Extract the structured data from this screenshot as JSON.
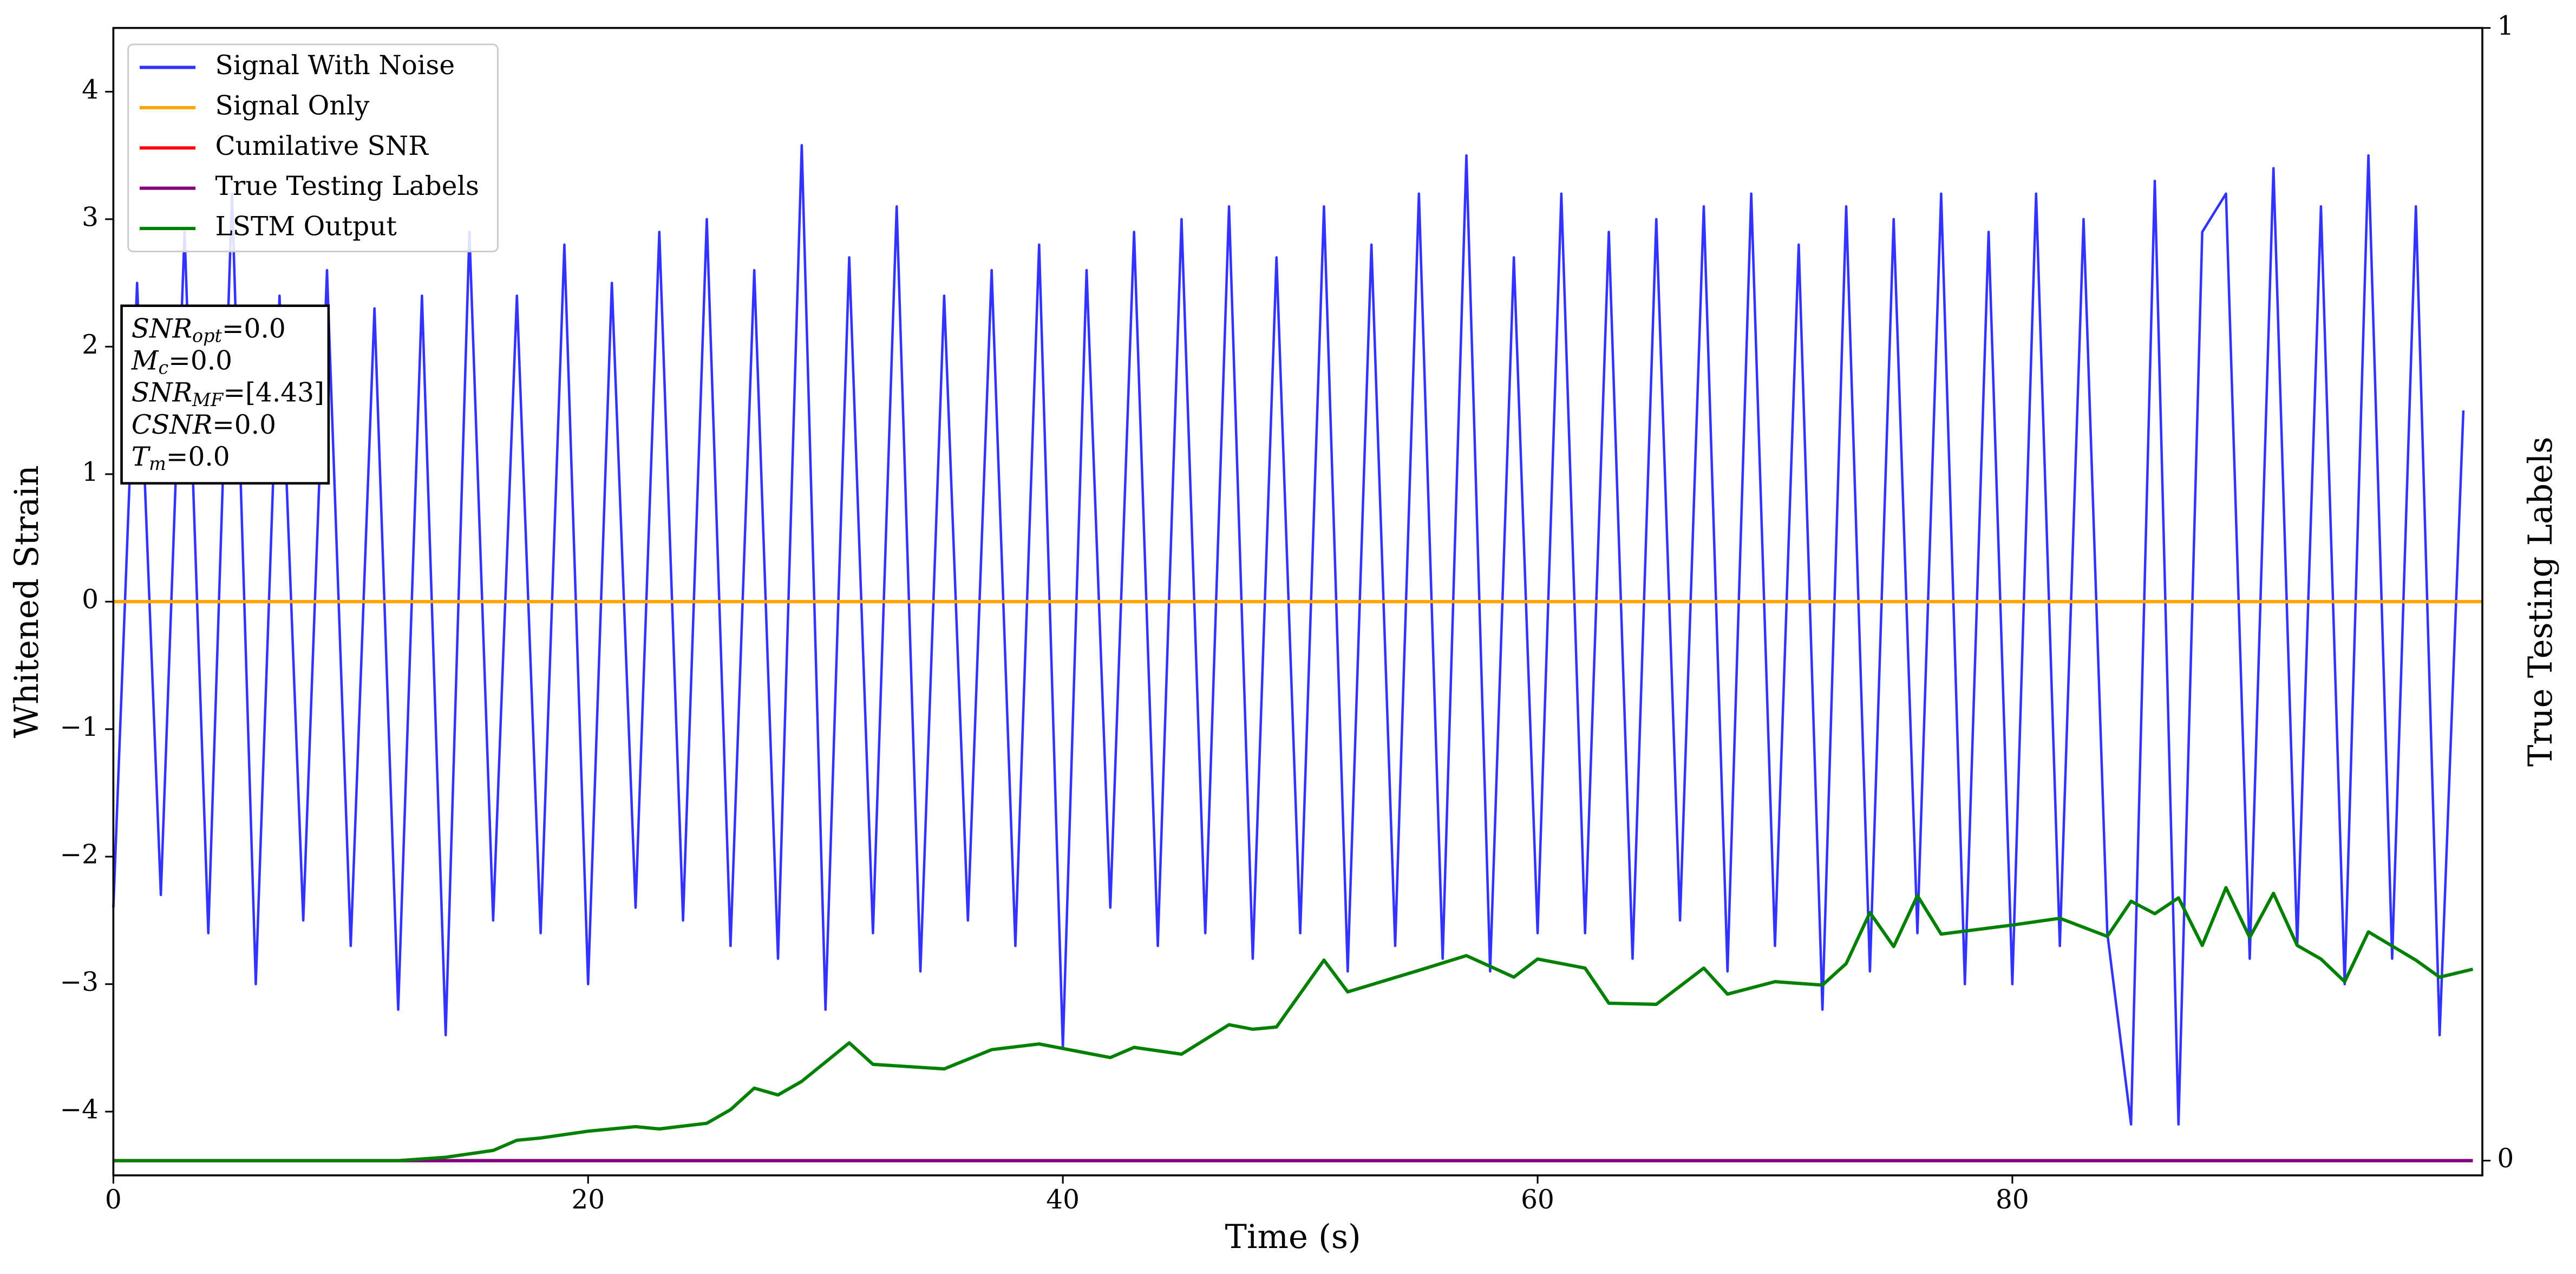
{
  "chart_data": {
    "type": "line",
    "xlabel": "Time (s)",
    "ylabel": "Whitened Strain",
    "y2label": "True Testing Labels",
    "xlim": [
      0,
      99.8
    ],
    "xticks": [
      0,
      20,
      40,
      60,
      80
    ],
    "ylim": [
      -4.5,
      4.5
    ],
    "yticks": [
      {
        "value": -4,
        "label": "−4"
      },
      {
        "value": -3,
        "label": "−3"
      },
      {
        "value": -2,
        "label": "−2"
      },
      {
        "value": -1,
        "label": "−1"
      },
      0,
      1,
      2,
      3,
      4
    ],
    "y2lim": [
      -0.013,
      1
    ],
    "y2ticks": [
      0,
      1
    ],
    "legend": "upper left",
    "series": [
      {
        "name": "Signal With Noise",
        "color": "#3333ff",
        "x": [
          0,
          1,
          2,
          3,
          4,
          5,
          6,
          7,
          8,
          9,
          10,
          11,
          12,
          13,
          14,
          15,
          16,
          17,
          18,
          19,
          20,
          21,
          22,
          23,
          24,
          25,
          26,
          27,
          28,
          29,
          30,
          31,
          32,
          33,
          34,
          35,
          36,
          37,
          38,
          39,
          40,
          41,
          42,
          43,
          44,
          45,
          46,
          47,
          48,
          49,
          50,
          51,
          52,
          53,
          54,
          55,
          56,
          57,
          58,
          59,
          60,
          61,
          62,
          63,
          64,
          65,
          66,
          67,
          68,
          69,
          70,
          71,
          72,
          73,
          74,
          75,
          76,
          77,
          78,
          79,
          80,
          81,
          82,
          83,
          84,
          85,
          86,
          87,
          88,
          89,
          90,
          91,
          92,
          93,
          94,
          95,
          96,
          97,
          98,
          99
        ],
        "values": [
          -2.4,
          2.5,
          -2.3,
          2.9,
          -2.6,
          3.2,
          -3.0,
          2.4,
          -2.5,
          2.6,
          -2.7,
          2.3,
          -3.2,
          2.4,
          -3.4,
          2.9,
          -2.5,
          2.4,
          -2.6,
          2.8,
          -3.0,
          2.5,
          -2.4,
          2.9,
          -2.5,
          3.0,
          -2.7,
          2.6,
          -2.8,
          3.58,
          -3.2,
          2.7,
          -2.6,
          3.1,
          -2.9,
          2.4,
          -2.5,
          2.6,
          -2.7,
          2.8,
          -3.5,
          2.6,
          -2.4,
          2.9,
          -2.7,
          3.0,
          -2.6,
          3.1,
          -2.8,
          2.7,
          -2.6,
          3.1,
          -2.9,
          2.8,
          -2.7,
          3.2,
          -2.8,
          3.5,
          -2.9,
          2.7,
          -2.6,
          3.2,
          -2.6,
          2.9,
          -2.8,
          3.0,
          -2.5,
          3.1,
          -2.9,
          3.2,
          -2.7,
          2.8,
          -3.2,
          3.1,
          -2.9,
          3.0,
          -2.6,
          3.2,
          -3.0,
          2.9,
          -3.0,
          3.2,
          -2.7,
          3.0,
          -2.6,
          -4.1,
          3.3,
          -4.1,
          2.9,
          3.2,
          -2.8,
          3.4,
          -2.7,
          3.1,
          -3.0,
          3.5,
          -2.8,
          3.1,
          -3.4,
          1.5
        ]
      },
      {
        "name": "Signal Only",
        "color": "#ffa500",
        "x": [
          0,
          99.8
        ],
        "values": [
          0,
          0
        ]
      },
      {
        "name": "Cumilative SNR",
        "color": "#ff0000",
        "axis": "y2",
        "x": [
          0,
          99.4
        ],
        "values": [
          0,
          0
        ]
      },
      {
        "name": "True Testing Labels",
        "color": "#800080",
        "axis": "y2",
        "x": [
          0,
          99.4
        ],
        "values": [
          0,
          0
        ]
      },
      {
        "name": "LSTM Output",
        "color": "#008000",
        "axis": "y2",
        "x": [
          0,
          12,
          14,
          16,
          17,
          18,
          20,
          22,
          23,
          25,
          26,
          27,
          28,
          29,
          31,
          32,
          35,
          37,
          39,
          42,
          43,
          45,
          47,
          48,
          49,
          51,
          52,
          55,
          57,
          59,
          60,
          62,
          63,
          65,
          67,
          68,
          70,
          72,
          73,
          74,
          75,
          76,
          77,
          80,
          82,
          84,
          85,
          86,
          87,
          88,
          89,
          90,
          91,
          92,
          93,
          94,
          95,
          97,
          98,
          99.4
        ],
        "values": [
          0,
          0,
          0.003,
          0.009,
          0.018,
          0.02,
          0.026,
          0.03,
          0.028,
          0.033,
          0.045,
          0.064,
          0.058,
          0.07,
          0.104,
          0.085,
          0.081,
          0.098,
          0.103,
          0.091,
          0.1,
          0.094,
          0.12,
          0.116,
          0.118,
          0.177,
          0.149,
          0.168,
          0.181,
          0.162,
          0.178,
          0.17,
          0.139,
          0.138,
          0.17,
          0.147,
          0.158,
          0.155,
          0.174,
          0.219,
          0.189,
          0.234,
          0.2,
          0.208,
          0.214,
          0.198,
          0.229,
          0.218,
          0.232,
          0.19,
          0.241,
          0.197,
          0.236,
          0.19,
          0.178,
          0.158,
          0.202,
          0.177,
          0.162,
          0.169
        ]
      }
    ],
    "annotation": [
      {
        "main": "SNR",
        "sub": "opt",
        "rest": "=0.0"
      },
      {
        "main": "M",
        "sub": "c",
        "rest": "=0.0"
      },
      {
        "main": "SNR",
        "sub": "MF",
        "rest": "=[4.43]"
      },
      {
        "main": "CSNR",
        "sub": "",
        "rest": "=0.0"
      },
      {
        "main": "T",
        "sub": "m",
        "rest": "=0.0"
      }
    ]
  }
}
